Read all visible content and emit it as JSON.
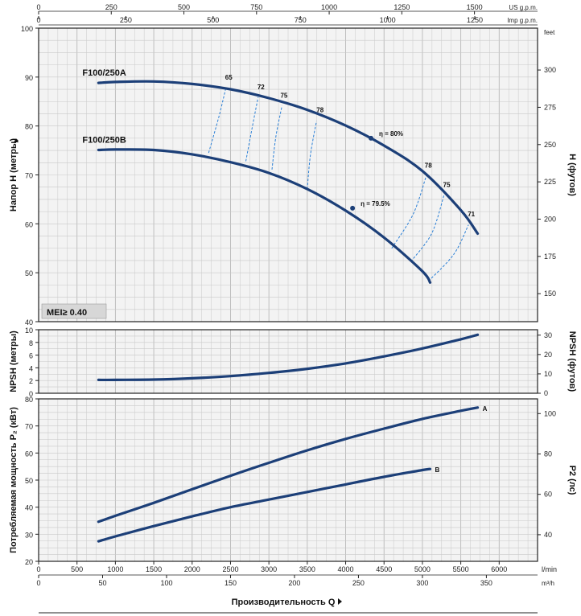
{
  "colors": {
    "curve": "#1c3f78",
    "eff": "#2a7fd6",
    "grid": "#c9c9c9",
    "panel": "#f3f3f3",
    "frame": "#222222"
  },
  "chart_data": [
    {
      "type": "line",
      "id": "head",
      "x_unit": "l/min",
      "ylabel": "Напор H (метры)",
      "ylabel_right": "H (футов)",
      "ylim": [
        40,
        100
      ],
      "yticks": [
        40,
        50,
        60,
        70,
        80,
        90,
        100
      ],
      "yticks_right": [
        150,
        175,
        200,
        225,
        250,
        275,
        300
      ],
      "right_unit": "feet",
      "right_scale": 3.2808,
      "badge": "MEI≥ 0.40",
      "series": [
        {
          "name": "F100/250A",
          "x": [
            780,
            1000,
            1500,
            2000,
            2500,
            3000,
            3500,
            4000,
            4500,
            5000,
            5500,
            5720
          ],
          "y": [
            88.8,
            89.0,
            89.1,
            88.6,
            87.5,
            85.7,
            83.3,
            80.1,
            76.0,
            70.8,
            62.8,
            58.0
          ]
        },
        {
          "name": "F100/250B",
          "x": [
            780,
            1000,
            1500,
            2000,
            2500,
            3000,
            3500,
            4000,
            4500,
            5000,
            5100
          ],
          "y": [
            75.1,
            75.2,
            75.1,
            74.2,
            72.6,
            70.4,
            67.1,
            62.7,
            57.2,
            50.3,
            48.0
          ]
        }
      ],
      "efficiency_lines": [
        {
          "label": "65",
          "x": [
            2215,
            2350,
            2440
          ],
          "y": [
            74.5,
            82.0,
            87.8
          ],
          "label_x": 2430,
          "label_y": 89.5
        },
        {
          "label": "72",
          "x": [
            2700,
            2780,
            2860
          ],
          "y": [
            72.8,
            79.5,
            85.9
          ],
          "label_x": 2850,
          "label_y": 87.5
        },
        {
          "label": "75",
          "x": [
            3040,
            3090,
            3170
          ],
          "y": [
            71.1,
            77.7,
            84.1
          ],
          "label_x": 3150,
          "label_y": 85.8
        },
        {
          "label": "78",
          "x": [
            3500,
            3540,
            3620
          ],
          "y": [
            67.1,
            74.0,
            81.0
          ],
          "label_x": 3620,
          "label_y": 82.8
        },
        {
          "label": "78",
          "x": [
            4600,
            4880,
            5050
          ],
          "y": [
            55.0,
            62.0,
            69.8
          ],
          "label_x": 5030,
          "label_y": 71.5
        },
        {
          "label": "75",
          "x": [
            4850,
            5120,
            5280
          ],
          "y": [
            52.3,
            58.0,
            65.8
          ],
          "label_x": 5270,
          "label_y": 67.5
        },
        {
          "label": "71",
          "x": [
            5080,
            5410,
            5600
          ],
          "y": [
            48.3,
            53.8,
            59.8
          ],
          "label_x": 5590,
          "label_y": 61.5
        }
      ],
      "bep_points": [
        {
          "label": "η = 80%",
          "x": 4330,
          "y": 77.5
        },
        {
          "label": "η = 79.5%",
          "x": 4090,
          "y": 63.2
        }
      ]
    },
    {
      "type": "line",
      "id": "npsh",
      "ylabel": "NPSH (метры)",
      "ylabel_right": "NPSH (футов)",
      "ylim": [
        0,
        10
      ],
      "yticks": [
        0,
        2,
        4,
        6,
        8,
        10
      ],
      "yticks_right": [
        0,
        10,
        20,
        30
      ],
      "right_scale": 3.2808,
      "series": [
        {
          "name": "",
          "x": [
            780,
            1000,
            1500,
            2000,
            2500,
            3000,
            3500,
            4000,
            4500,
            5000,
            5500,
            5720
          ],
          "y": [
            2.1,
            2.1,
            2.15,
            2.35,
            2.7,
            3.2,
            3.85,
            4.7,
            5.8,
            7.05,
            8.5,
            9.2
          ]
        }
      ]
    },
    {
      "type": "line",
      "id": "power",
      "ylabel": "Потребляемая мощность P₂ (кВт)",
      "ylabel_right": "P2 (лс)",
      "ylim": [
        20,
        80
      ],
      "yticks": [
        20,
        30,
        40,
        50,
        60,
        70,
        80
      ],
      "yticks_right": [
        40,
        60,
        80,
        100
      ],
      "right_scale": 1.341,
      "xlabel": "Производительность Q",
      "x_unit": "l/min",
      "x_unit2": "m³/h",
      "xlim": [
        0,
        6500
      ],
      "xticks": [
        0,
        500,
        1000,
        1500,
        2000,
        2500,
        3000,
        3500,
        4000,
        4500,
        5000,
        5500,
        6000
      ],
      "xticks_m3h": [
        0,
        50,
        100,
        150,
        200,
        250,
        300,
        350
      ],
      "series": [
        {
          "name": "A",
          "x": [
            780,
            1000,
            1500,
            2000,
            2500,
            3000,
            3500,
            4000,
            4500,
            5000,
            5500,
            5720
          ],
          "y": [
            34.6,
            36.8,
            41.6,
            46.6,
            51.6,
            56.4,
            61.0,
            65.2,
            69.0,
            72.6,
            75.6,
            76.8
          ]
        },
        {
          "name": "B",
          "x": [
            780,
            1000,
            1500,
            2000,
            2500,
            3000,
            3500,
            4000,
            4500,
            5000,
            5100
          ],
          "y": [
            27.4,
            29.2,
            33.0,
            36.6,
            40.0,
            42.8,
            45.6,
            48.4,
            51.2,
            53.7,
            54.1
          ]
        }
      ]
    }
  ],
  "top_axes": {
    "us_gpm": {
      "unit": "US g.p.m.",
      "ticks": [
        0,
        250,
        500,
        750,
        1000,
        1250,
        1500
      ],
      "factor": 3.7854
    },
    "imp_gpm": {
      "unit": "Imp g.p.m.",
      "ticks": [
        0,
        250,
        500,
        750,
        1000,
        1250
      ],
      "factor": 4.5461
    }
  }
}
